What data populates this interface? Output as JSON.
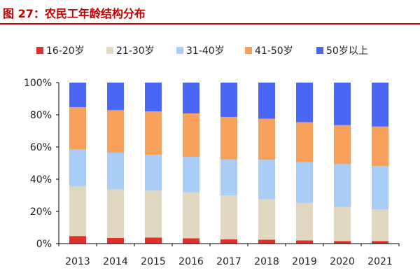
{
  "title": "图 27：农民工年龄结构分布",
  "colors": {
    "title": "#c00000",
    "axis": "#000000",
    "text": "#222222"
  },
  "chart_data": {
    "type": "bar",
    "stacked": true,
    "categories": [
      "2013",
      "2014",
      "2015",
      "2016",
      "2017",
      "2018",
      "2019",
      "2020",
      "2021"
    ],
    "ylim": [
      0,
      100
    ],
    "yticks": [
      0,
      20,
      40,
      60,
      80,
      100
    ],
    "ytick_labels": [
      "0%",
      "20%",
      "40%",
      "60%",
      "80%",
      "100%"
    ],
    "legend_position": "top",
    "grid": false,
    "series": [
      {
        "name": "16-20岁",
        "color": "#e0302a",
        "values": [
          4.7,
          3.5,
          3.7,
          3.3,
          2.6,
          2.4,
          2.0,
          1.6,
          1.6
        ]
      },
      {
        "name": "21-30岁",
        "color": "#e2d8c2",
        "values": [
          30.8,
          30.2,
          29.2,
          28.6,
          27.3,
          25.2,
          23.1,
          21.1,
          19.6
        ]
      },
      {
        "name": "31-40岁",
        "color": "#a9cdf7",
        "values": [
          22.9,
          22.8,
          22.3,
          22.0,
          22.5,
          24.5,
          25.5,
          26.7,
          27.0
        ]
      },
      {
        "name": "41-50岁",
        "color": "#f7a05b",
        "values": [
          26.4,
          26.4,
          26.9,
          27.0,
          26.3,
          25.5,
          24.8,
          24.2,
          24.5
        ]
      },
      {
        "name": "50岁以上",
        "color": "#4a66f2",
        "values": [
          15.2,
          17.1,
          17.9,
          19.1,
          21.3,
          22.4,
          24.6,
          26.4,
          27.3
        ]
      }
    ]
  }
}
